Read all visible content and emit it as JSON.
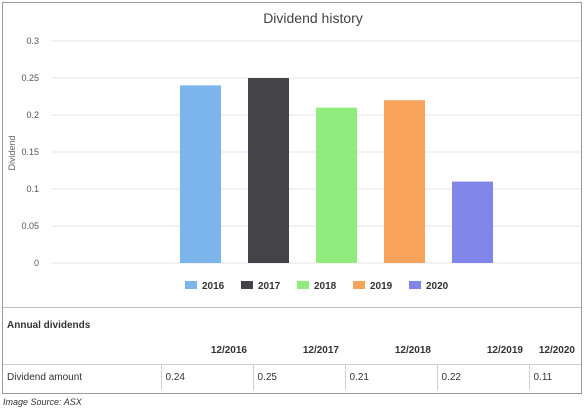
{
  "chart_data": {
    "type": "bar",
    "title": "Dividend history",
    "ylabel": "Dividend",
    "xlabel": "",
    "categories": [
      "2016",
      "2017",
      "2018",
      "2019",
      "2020"
    ],
    "values": [
      0.24,
      0.25,
      0.21,
      0.22,
      0.11
    ],
    "colors": [
      "#7cb5ec",
      "#434348",
      "#90ed7d",
      "#f7a35c",
      "#8085e9"
    ],
    "ylim": [
      0,
      0.3
    ],
    "yticks": [
      "0",
      "0.05",
      "0.1",
      "0.15",
      "0.2",
      "0.25",
      "0.3"
    ],
    "grid": true,
    "legend_position": "bottom"
  },
  "table": {
    "title": "Annual dividends",
    "columns": [
      "12/2016",
      "12/2017",
      "12/2018",
      "12/2019",
      "12/2020"
    ],
    "row_label": "Dividend amount",
    "values": [
      "0.24",
      "0.25",
      "0.21",
      "0.22",
      "0.11"
    ]
  },
  "source_note": "Image Source: ASX"
}
